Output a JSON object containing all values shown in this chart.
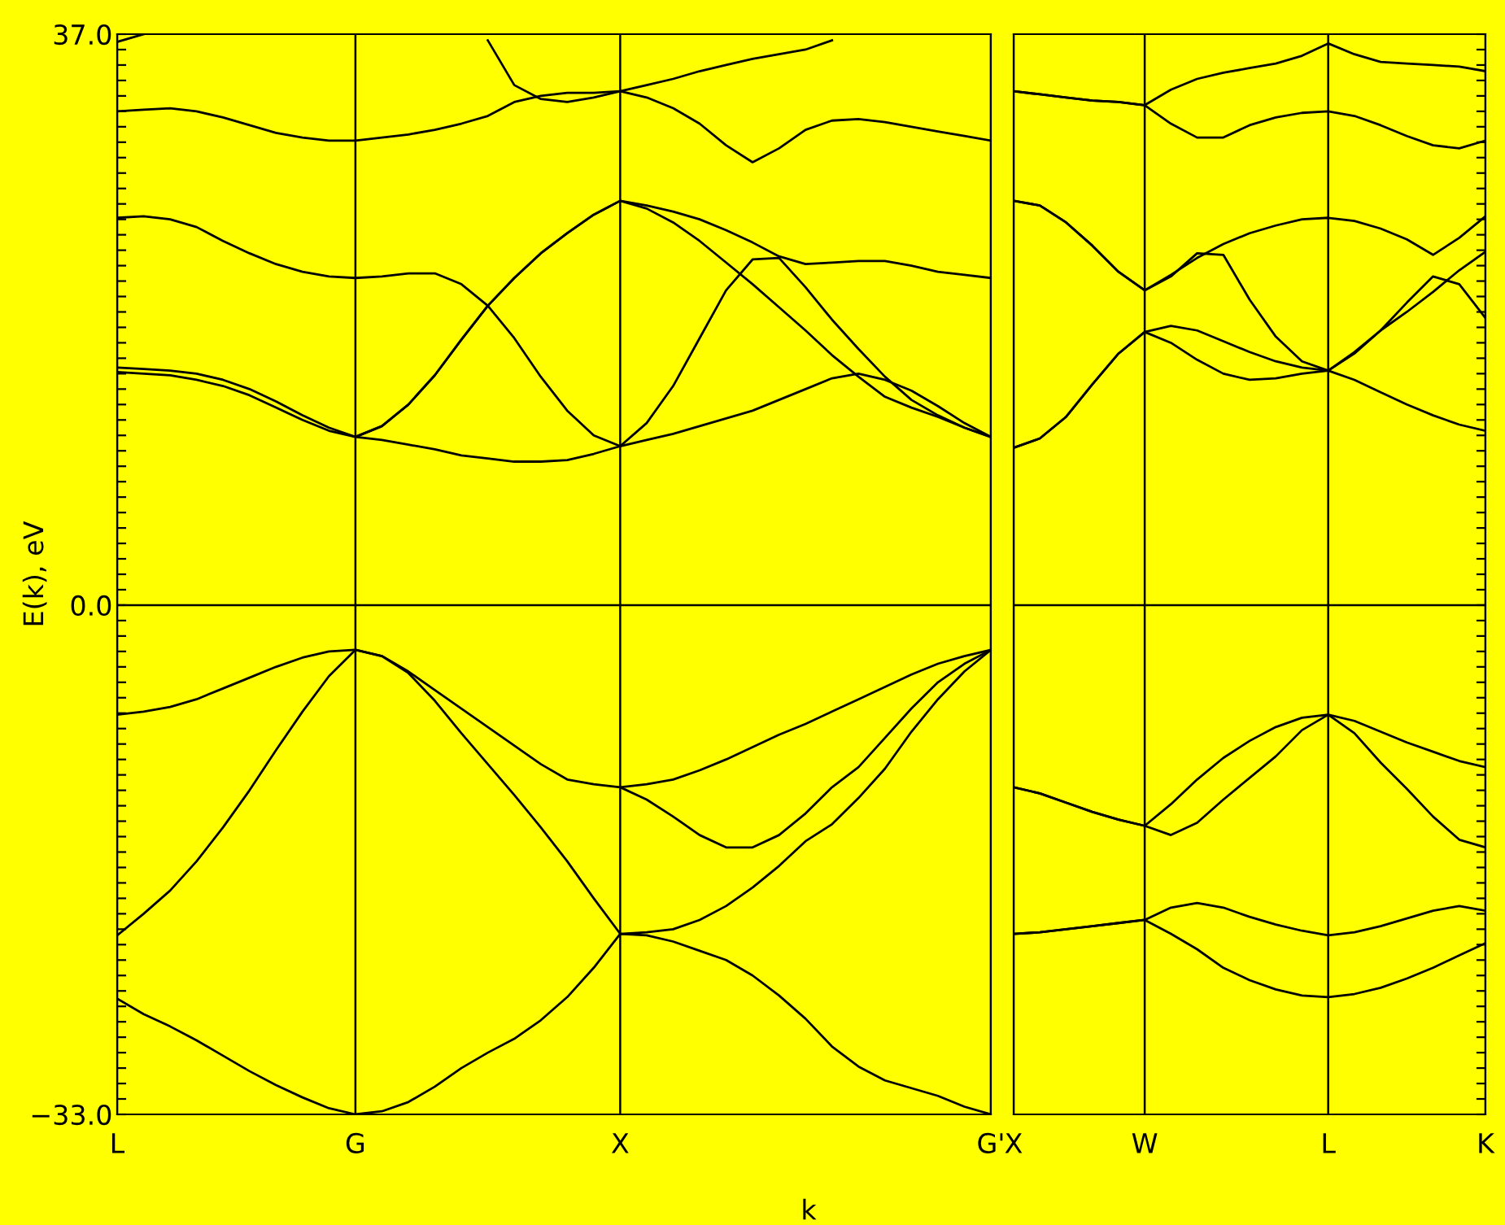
{
  "chart_data": [
    {
      "type": "line",
      "xlabel": "k",
      "ylabel": "E(k), eV",
      "grid": "x",
      "categories": [
        "L",
        null,
        null,
        null,
        null,
        null,
        null,
        null,
        null,
        "G",
        null,
        null,
        null,
        null,
        null,
        null,
        null,
        null,
        null,
        "X",
        null,
        null,
        null,
        null,
        null,
        null,
        null,
        null,
        null,
        null,
        null,
        null,
        null,
        "G'"
      ],
      "ylim": [
        -33,
        37
      ],
      "yticks": [
        {
          "value": 37,
          "label": "37.0"
        },
        {
          "value": 36,
          "label": null
        },
        {
          "value": 35,
          "label": null
        },
        {
          "value": 34,
          "label": null
        },
        {
          "value": 33,
          "label": null
        },
        {
          "value": 32,
          "label": null
        },
        {
          "value": 31,
          "label": null
        },
        {
          "value": 30,
          "label": null
        },
        {
          "value": 29,
          "label": null
        },
        {
          "value": 28,
          "label": null
        },
        {
          "value": 27,
          "label": null
        },
        {
          "value": 26,
          "label": null
        },
        {
          "value": 25,
          "label": null
        },
        {
          "value": 24,
          "label": null
        },
        {
          "value": 23,
          "label": null
        },
        {
          "value": 22,
          "label": null
        },
        {
          "value": 21,
          "label": null
        },
        {
          "value": 20,
          "label": null
        },
        {
          "value": 19,
          "label": null
        },
        {
          "value": 18,
          "label": null
        },
        {
          "value": 17,
          "label": null
        },
        {
          "value": 16,
          "label": null
        },
        {
          "value": 15,
          "label": null
        },
        {
          "value": 14,
          "label": null
        },
        {
          "value": 13,
          "label": null
        },
        {
          "value": 12,
          "label": null
        },
        {
          "value": 11,
          "label": null
        },
        {
          "value": 10,
          "label": null
        },
        {
          "value": 9,
          "label": null
        },
        {
          "value": 8,
          "label": null
        },
        {
          "value": 7,
          "label": null
        },
        {
          "value": 6,
          "label": null
        },
        {
          "value": 5,
          "label": null
        },
        {
          "value": 4,
          "label": null
        },
        {
          "value": 3,
          "label": null
        },
        {
          "value": 2,
          "label": null
        },
        {
          "value": 1,
          "label": null
        },
        {
          "value": 0,
          "label": "0.0"
        },
        {
          "value": -1,
          "label": null
        },
        {
          "value": -2,
          "label": null
        },
        {
          "value": -3,
          "label": null
        },
        {
          "value": -4,
          "label": null
        },
        {
          "value": -5,
          "label": null
        },
        {
          "value": -6,
          "label": null
        },
        {
          "value": -7,
          "label": null
        },
        {
          "value": -8,
          "label": null
        },
        {
          "value": -9,
          "label": null
        },
        {
          "value": -10,
          "label": null
        },
        {
          "value": -11,
          "label": null
        },
        {
          "value": -12,
          "label": null
        },
        {
          "value": -13,
          "label": null
        },
        {
          "value": -14,
          "label": null
        },
        {
          "value": -15,
          "label": null
        },
        {
          "value": -16,
          "label": null
        },
        {
          "value": -17,
          "label": null
        },
        {
          "value": -18,
          "label": null
        },
        {
          "value": -19,
          "label": null
        },
        {
          "value": -20,
          "label": null
        },
        {
          "value": -21,
          "label": null
        },
        {
          "value": -22,
          "label": null
        },
        {
          "value": -23,
          "label": null
        },
        {
          "value": -24,
          "label": null
        },
        {
          "value": -25,
          "label": null
        },
        {
          "value": -26,
          "label": null
        },
        {
          "value": -27,
          "label": null
        },
        {
          "value": -28,
          "label": null
        },
        {
          "value": -29,
          "label": null
        },
        {
          "value": -30,
          "label": null
        },
        {
          "value": -31,
          "label": null
        },
        {
          "value": -32,
          "label": null
        },
        {
          "value": -33,
          "label": "−33.0"
        }
      ],
      "ref_lines": [
        {
          "axis": "y",
          "value": 0,
          "color": "#000000"
        }
      ],
      "series": [
        {
          "color": "#000000",
          "values": [
            -25.5,
            -26.5,
            -27.3,
            -28.2,
            -29.2,
            -30.2,
            -31.1,
            -31.9,
            -32.6,
            -33.0,
            -32.8,
            -32.2,
            -31.2,
            -30.0,
            -29.0,
            -28.1,
            -26.9,
            -25.4,
            -23.5,
            -21.3,
            -21.4,
            -21.8,
            -22.4,
            -23.0,
            -24.0,
            -25.3,
            -26.8,
            -28.6,
            -29.9,
            -30.8,
            -31.3,
            -31.8,
            -32.5,
            -33.0
          ]
        },
        {
          "color": "#000000",
          "values": [
            -21.4,
            -20.0,
            -18.5,
            -16.6,
            -14.4,
            -12.0,
            -9.4,
            -6.9,
            -4.6,
            -2.9,
            -3.3,
            -4.4,
            -6.2,
            -8.3,
            -10.3,
            -12.3,
            -14.4,
            -16.6,
            -19.0,
            -21.3,
            -21.2,
            -21.0,
            -20.4,
            -19.5,
            -18.3,
            -16.9,
            -15.3,
            -14.2,
            -12.5,
            -10.6,
            -8.2,
            -6.1,
            -4.3,
            -2.9
          ]
        },
        {
          "color": "#000000",
          "values": [
            -7.1,
            -6.9,
            -6.6,
            -6.1,
            -5.4,
            -4.7,
            -4.0,
            -3.4,
            -3.0,
            -2.9,
            -3.3,
            -4.3,
            -5.5,
            -6.7,
            -7.9,
            -9.1,
            -10.3,
            -11.3,
            -11.6,
            -11.8,
            -12.6,
            -13.7,
            -14.9,
            -15.7,
            -15.7,
            -14.9,
            -13.5,
            -11.8,
            -10.5,
            -8.6,
            -6.7,
            -5.0,
            -3.8,
            -2.9
          ]
        },
        {
          "color": "#000000",
          "values": [
            null,
            null,
            null,
            null,
            null,
            null,
            null,
            null,
            null,
            null,
            null,
            null,
            null,
            null,
            null,
            null,
            null,
            null,
            null,
            -11.8,
            -11.6,
            -11.3,
            -10.7,
            -10.0,
            -9.2,
            -8.4,
            -7.7,
            -6.9,
            -6.1,
            -5.3,
            -4.5,
            -3.8,
            -3.3,
            -2.9
          ]
        },
        {
          "color": "#000000",
          "values": [
            15.1,
            15.0,
            14.9,
            14.6,
            14.2,
            13.6,
            12.8,
            12.0,
            11.3,
            10.9,
            10.7,
            10.4,
            10.1,
            9.7,
            9.5,
            9.3,
            9.3,
            9.4,
            9.8,
            10.3,
            10.7,
            11.1,
            11.6,
            12.1,
            12.6,
            13.3,
            14.0,
            14.7,
            15.0,
            14.6,
            13.9,
            12.9,
            11.8,
            10.9
          ]
        },
        {
          "color": "#000000",
          "values": [
            15.4,
            15.3,
            15.2,
            15.0,
            14.6,
            14.0,
            13.2,
            12.3,
            11.5,
            10.9,
            11.6,
            13.0,
            14.9,
            17.2,
            19.4,
            21.2,
            22.8,
            24.1,
            25.3,
            26.2,
            25.7,
            24.8,
            23.6,
            22.2,
            20.8,
            19.3,
            17.8,
            16.2,
            14.8,
            13.5,
            12.8,
            12.2,
            11.5,
            10.9
          ]
        },
        {
          "color": "#000000",
          "values": [
            25.1,
            25.2,
            25.0,
            24.5,
            23.6,
            22.8,
            22.1,
            21.6,
            21.3,
            21.2,
            21.3,
            21.5,
            21.5,
            20.8,
            19.4,
            17.3,
            14.8,
            12.6,
            11.0,
            10.3,
            11.8,
            14.2,
            17.3,
            20.4,
            22.4,
            22.5,
            20.6,
            18.5,
            16.6,
            14.8,
            13.3,
            12.3,
            11.5,
            10.9
          ]
        },
        {
          "color": "#000000",
          "values": [
            null,
            null,
            null,
            null,
            null,
            null,
            null,
            null,
            null,
            10.9,
            11.6,
            13.0,
            14.9,
            17.2,
            19.4,
            21.2,
            22.8,
            24.1,
            25.3,
            26.2,
            25.9,
            25.5,
            25.0,
            24.3,
            23.5,
            22.6,
            22.1,
            22.2,
            22.3,
            22.3,
            22.0,
            21.6,
            21.4,
            21.2
          ]
        },
        {
          "color": "#000000",
          "values": [
            32.0,
            32.1,
            32.2,
            32.0,
            31.6,
            31.1,
            30.6,
            30.3,
            30.1,
            30.1,
            30.3,
            30.5,
            30.8,
            31.2,
            31.7,
            32.6,
            33.0,
            33.2,
            33.2,
            33.3,
            32.9,
            32.2,
            31.2,
            29.8,
            28.7,
            29.6,
            30.8,
            31.4,
            31.5,
            31.3,
            31.0,
            30.7,
            30.4,
            30.1
          ]
        },
        {
          "color": "#000000",
          "values": [
            null,
            null,
            null,
            null,
            null,
            null,
            null,
            null,
            null,
            null,
            null,
            null,
            null,
            null,
            36.6,
            33.7,
            32.8,
            32.6,
            32.9,
            33.3,
            33.7,
            34.1,
            34.6,
            35.0,
            35.4,
            35.7,
            36.0,
            36.6,
            null,
            null,
            null,
            null,
            null,
            null
          ]
        },
        {
          "color": "#000000",
          "values": [
            36.5,
            37.0,
            null,
            null,
            null,
            null,
            null,
            null,
            null,
            null,
            null,
            null,
            null,
            null,
            null,
            null,
            null,
            null,
            null,
            null,
            null,
            null,
            null,
            null,
            null,
            null,
            null,
            null,
            null,
            null,
            null,
            null,
            null,
            null
          ]
        }
      ]
    },
    {
      "type": "line",
      "grid": "x",
      "tick_labels": "x",
      "categories": [
        "X",
        null,
        null,
        null,
        null,
        "W",
        null,
        null,
        null,
        null,
        null,
        null,
        "L",
        null,
        null,
        null,
        null,
        null,
        "K"
      ],
      "ylim": [
        -33,
        37
      ],
      "yticks": [
        {
          "value": 37,
          "label": null
        },
        {
          "value": 36,
          "label": null
        },
        {
          "value": 35,
          "label": null
        },
        {
          "value": 34,
          "label": null
        },
        {
          "value": 33,
          "label": null
        },
        {
          "value": 32,
          "label": null
        },
        {
          "value": 31,
          "label": null
        },
        {
          "value": 30,
          "label": null
        },
        {
          "value": 29,
          "label": null
        },
        {
          "value": 28,
          "label": null
        },
        {
          "value": 27,
          "label": null
        },
        {
          "value": 26,
          "label": null
        },
        {
          "value": 25,
          "label": null
        },
        {
          "value": 24,
          "label": null
        },
        {
          "value": 23,
          "label": null
        },
        {
          "value": 22,
          "label": null
        },
        {
          "value": 21,
          "label": null
        },
        {
          "value": 20,
          "label": null
        },
        {
          "value": 19,
          "label": null
        },
        {
          "value": 18,
          "label": null
        },
        {
          "value": 17,
          "label": null
        },
        {
          "value": 16,
          "label": null
        },
        {
          "value": 15,
          "label": null
        },
        {
          "value": 14,
          "label": null
        },
        {
          "value": 13,
          "label": null
        },
        {
          "value": 12,
          "label": null
        },
        {
          "value": 11,
          "label": null
        },
        {
          "value": 10,
          "label": null
        },
        {
          "value": 9,
          "label": null
        },
        {
          "value": 8,
          "label": null
        },
        {
          "value": 7,
          "label": null
        },
        {
          "value": 6,
          "label": null
        },
        {
          "value": 5,
          "label": null
        },
        {
          "value": 4,
          "label": null
        },
        {
          "value": 3,
          "label": null
        },
        {
          "value": 2,
          "label": null
        },
        {
          "value": 1,
          "label": null
        },
        {
          "value": 0,
          "label": null
        },
        {
          "value": -1,
          "label": null
        },
        {
          "value": -2,
          "label": null
        },
        {
          "value": -3,
          "label": null
        },
        {
          "value": -4,
          "label": null
        },
        {
          "value": -5,
          "label": null
        },
        {
          "value": -6,
          "label": null
        },
        {
          "value": -7,
          "label": null
        },
        {
          "value": -8,
          "label": null
        },
        {
          "value": -9,
          "label": null
        },
        {
          "value": -10,
          "label": null
        },
        {
          "value": -11,
          "label": null
        },
        {
          "value": -12,
          "label": null
        },
        {
          "value": -13,
          "label": null
        },
        {
          "value": -14,
          "label": null
        },
        {
          "value": -15,
          "label": null
        },
        {
          "value": -16,
          "label": null
        },
        {
          "value": -17,
          "label": null
        },
        {
          "value": -18,
          "label": null
        },
        {
          "value": -19,
          "label": null
        },
        {
          "value": -20,
          "label": null
        },
        {
          "value": -21,
          "label": null
        },
        {
          "value": -22,
          "label": null
        },
        {
          "value": -23,
          "label": null
        },
        {
          "value": -24,
          "label": null
        },
        {
          "value": -25,
          "label": null
        },
        {
          "value": -26,
          "label": null
        },
        {
          "value": -27,
          "label": null
        },
        {
          "value": -28,
          "label": null
        },
        {
          "value": -29,
          "label": null
        },
        {
          "value": -30,
          "label": null
        },
        {
          "value": -31,
          "label": null
        },
        {
          "value": -32,
          "label": null
        },
        {
          "value": -33,
          "label": null
        }
      ],
      "ref_lines": [
        {
          "axis": "y",
          "value": 0,
          "color": "#000000"
        }
      ],
      "series": [
        {
          "color": "#000000",
          "values": [
            -21.3,
            -21.2,
            -21.0,
            -20.8,
            -20.6,
            -20.4,
            -19.6,
            -19.3,
            -19.6,
            -20.2,
            -20.7,
            -21.1,
            -21.4,
            -21.2,
            -20.8,
            -20.3,
            -19.8,
            -19.5,
            -19.8
          ]
        },
        {
          "color": "#000000",
          "values": [
            -21.3,
            -21.2,
            -21.0,
            -20.8,
            -20.6,
            -20.4,
            -21.3,
            -22.3,
            -23.5,
            -24.3,
            -24.9,
            -25.3,
            -25.4,
            -25.2,
            -24.8,
            -24.2,
            -23.5,
            -22.7,
            -21.9
          ]
        },
        {
          "color": "#000000",
          "values": [
            -11.8,
            -12.2,
            -12.8,
            -13.4,
            -13.9,
            -14.3,
            -12.9,
            -11.3,
            -9.9,
            -8.8,
            -7.9,
            -7.3,
            -7.1,
            -7.5,
            -8.2,
            -8.9,
            -9.5,
            -10.1,
            -10.5
          ]
        },
        {
          "color": "#000000",
          "values": [
            -11.8,
            -12.2,
            -12.8,
            -13.4,
            -13.9,
            -14.3,
            -14.9,
            -14.1,
            -12.6,
            -11.2,
            -9.8,
            -8.1,
            -7.1,
            -8.3,
            -10.2,
            -11.9,
            -13.7,
            -15.2,
            -15.7
          ]
        },
        {
          "color": "#000000",
          "values": [
            10.2,
            10.8,
            12.2,
            14.3,
            16.3,
            17.7,
            18.1,
            17.8,
            17.1,
            16.4,
            15.8,
            15.4,
            15.2,
            14.6,
            13.8,
            13.0,
            12.3,
            11.7,
            11.3
          ]
        },
        {
          "color": "#000000",
          "values": [
            10.2,
            10.8,
            12.2,
            14.3,
            16.3,
            17.7,
            17.0,
            15.9,
            15.0,
            14.6,
            14.7,
            15.0,
            15.2,
            16.4,
            17.8,
            19.0,
            20.3,
            21.7,
            22.9
          ]
        },
        {
          "color": "#000000",
          "values": [
            26.2,
            25.9,
            24.8,
            23.3,
            21.6,
            20.4,
            21.3,
            22.8,
            22.7,
            19.8,
            17.4,
            15.8,
            15.2,
            16.3,
            17.8,
            19.6,
            21.3,
            20.8,
            18.6
          ]
        },
        {
          "color": "#000000",
          "values": [
            26.2,
            25.9,
            24.8,
            23.3,
            21.6,
            20.4,
            21.4,
            22.5,
            23.4,
            24.1,
            24.6,
            25.0,
            25.1,
            24.9,
            24.4,
            23.7,
            22.7,
            23.8,
            25.2
          ]
        },
        {
          "color": "#000000",
          "values": [
            33.3,
            33.1,
            32.9,
            32.7,
            32.6,
            32.4,
            33.4,
            34.1,
            34.5,
            34.8,
            35.1,
            35.6,
            36.4,
            35.7,
            35.2,
            35.1,
            35.0,
            34.9,
            34.6
          ]
        },
        {
          "color": "#000000",
          "values": [
            33.3,
            33.1,
            32.9,
            32.7,
            32.6,
            32.4,
            31.2,
            30.3,
            30.3,
            31.1,
            31.6,
            31.9,
            32.0,
            31.7,
            31.1,
            30.4,
            29.8,
            29.6,
            30.1
          ]
        }
      ]
    }
  ]
}
